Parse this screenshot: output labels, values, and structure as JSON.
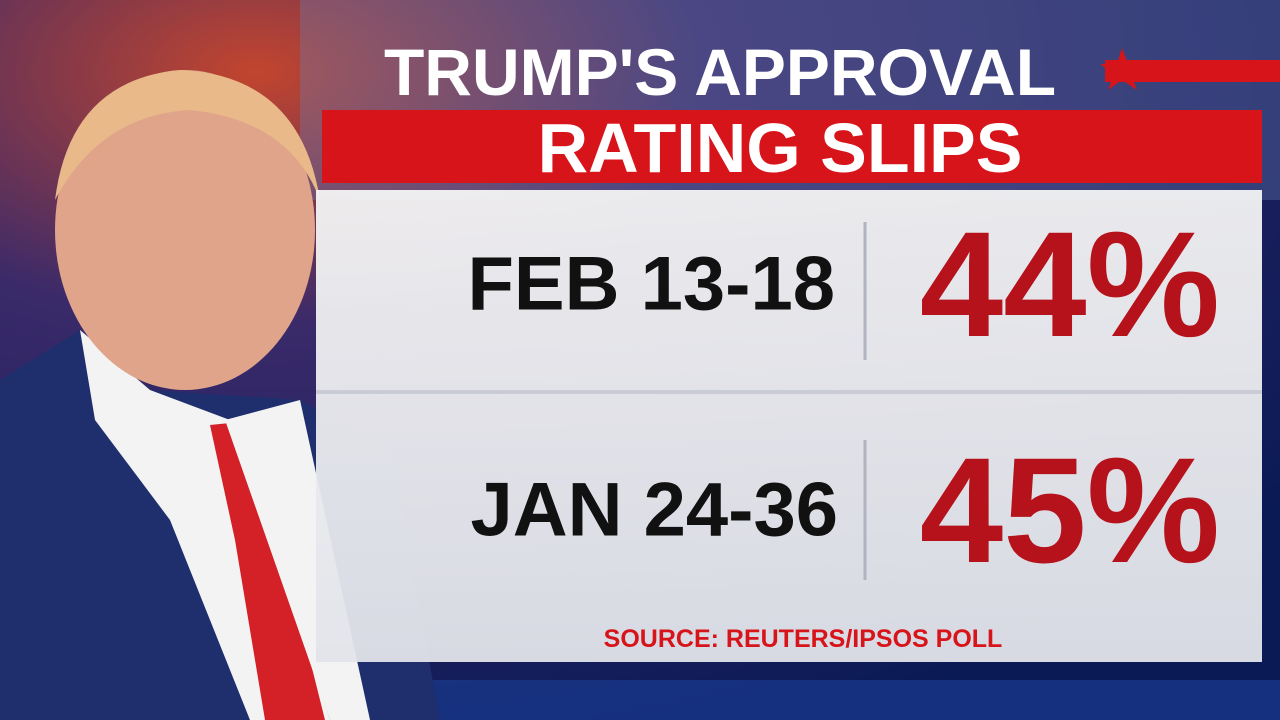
{
  "header": {
    "title_line1": "TRUMP'S APPROVAL",
    "title_line2": "RATING SLIPS"
  },
  "rows": [
    {
      "period": "FEB 13-18",
      "rating": "44%"
    },
    {
      "period": "JAN 24-36",
      "rating": "45%"
    }
  ],
  "source": "SOURCE: REUTERS/IPSOS POLL"
}
